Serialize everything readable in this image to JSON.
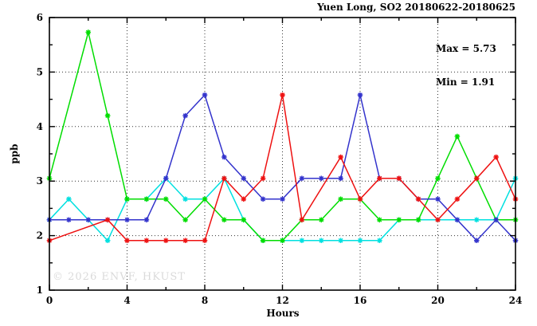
{
  "title": "Yuen Long, SO2 20180622-20180625",
  "stats": {
    "max_label": "Max = 5.73",
    "min_label": "Min = 1.91"
  },
  "watermark": "© 2026 ENVF, HKUST",
  "axes": {
    "x_label": "Hours",
    "y_label": "ppb",
    "x_range": [
      0,
      24
    ],
    "y_range": [
      1,
      6
    ],
    "x_major_ticks": [
      0,
      4,
      8,
      12,
      16,
      20,
      24
    ],
    "x_minor_ticks": [
      2,
      6,
      10,
      14,
      18,
      22
    ],
    "y_major_ticks": [
      1,
      2,
      3,
      4,
      5,
      6
    ],
    "y_minor_ticks": [
      1.5,
      2.5,
      3.5,
      4.5,
      5.5
    ],
    "grid_x": [
      4,
      8,
      12,
      16,
      20
    ],
    "grid_y": [
      2,
      3,
      4,
      5
    ]
  },
  "chart_data": {
    "type": "line",
    "title": "Yuen Long, SO2 20180622-20180625",
    "xlabel": "Hours",
    "ylabel": "ppb",
    "xlim": [
      0,
      24
    ],
    "ylim": [
      1,
      6
    ],
    "grid": true,
    "legend_position": "none",
    "annotations": [
      "Max = 5.73",
      "Min = 1.91"
    ],
    "x": [
      0,
      1,
      2,
      3,
      4,
      5,
      6,
      7,
      8,
      9,
      10,
      11,
      12,
      13,
      14,
      15,
      16,
      17,
      18,
      19,
      20,
      21,
      22,
      23,
      24
    ],
    "series": [
      {
        "name": "series-cyan",
        "color": "#00e0e0",
        "values": [
          2.29,
          2.67,
          2.29,
          1.91,
          2.67,
          2.67,
          3.05,
          2.67,
          2.67,
          3.05,
          2.29,
          1.91,
          1.91,
          1.91,
          1.91,
          1.91,
          1.91,
          1.91,
          2.29,
          2.29,
          2.29,
          2.29,
          2.29,
          2.29,
          3.05
        ]
      },
      {
        "name": "series-green",
        "color": "#00dd00",
        "values": [
          3.05,
          null,
          5.73,
          4.2,
          2.67,
          2.67,
          2.67,
          2.29,
          2.67,
          2.29,
          2.29,
          1.91,
          1.91,
          2.29,
          2.29,
          2.67,
          2.67,
          2.29,
          2.29,
          2.29,
          3.05,
          3.82,
          3.05,
          2.29,
          2.29
        ]
      },
      {
        "name": "series-blue",
        "color": "#3333cc",
        "values": [
          2.29,
          2.29,
          2.29,
          2.29,
          2.29,
          2.29,
          3.05,
          4.2,
          4.58,
          3.44,
          3.05,
          2.67,
          2.67,
          3.05,
          3.05,
          3.05,
          4.58,
          3.05,
          3.05,
          2.67,
          2.67,
          2.29,
          1.91,
          2.29,
          1.91
        ]
      },
      {
        "name": "series-red",
        "color": "#ee1111",
        "values": [
          1.91,
          null,
          null,
          2.29,
          1.91,
          1.91,
          1.91,
          1.91,
          1.91,
          3.05,
          2.67,
          3.05,
          4.58,
          2.29,
          null,
          3.44,
          2.67,
          3.05,
          3.05,
          2.67,
          2.29,
          2.67,
          3.05,
          3.44,
          2.67
        ]
      }
    ]
  }
}
